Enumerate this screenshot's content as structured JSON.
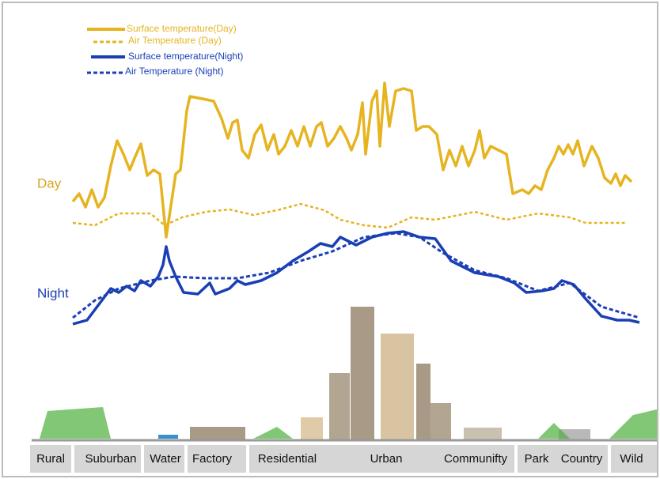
{
  "legend": [
    "Surface temperature(Day)",
    "Air Temperature (Day)",
    "Surface temperature(Night)",
    "Air Temperature (Night)"
  ],
  "labels": {
    "day": "Day",
    "night": "Night"
  },
  "zones": [
    "Rural",
    "Suburban",
    "Water",
    "Factory",
    "Residential",
    "Urban",
    "Communifty",
    "Park",
    "Country",
    "Wild"
  ]
}
